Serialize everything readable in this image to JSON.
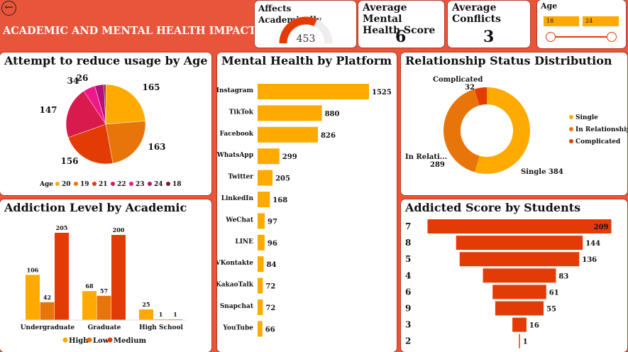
{
  "header": {
    "title": "ACADEMIC AND MENTAL HEALTH IMPACT",
    "back_icon": "arrow-left-icon"
  },
  "kpis": {
    "affects": {
      "label": "Affects Academically",
      "value": "453",
      "gauge_fraction": 0.64
    },
    "mental": {
      "label1": "Average Mental",
      "label2": "Health Score",
      "value": "6"
    },
    "conflicts": {
      "label1": "Average",
      "label2": "Conflicts",
      "value": "3"
    }
  },
  "age_slicer": {
    "label": "Age",
    "min": "18",
    "max": "24"
  },
  "colors": {
    "accent": "#e8553a",
    "bar": "#ffaa00",
    "high": "#ffaa00",
    "low": "#e8750a",
    "medium": "#e33b06"
  },
  "pie_age": {
    "title": "Attempt to reduce usage by Age",
    "legend_title": "Age",
    "slices": [
      {
        "label": "20",
        "value": 165,
        "color": "#ffaa00"
      },
      {
        "label": "19",
        "value": 163,
        "color": "#e8750a"
      },
      {
        "label": "21",
        "value": 156,
        "color": "#e33b06"
      },
      {
        "label": "22",
        "value": 147,
        "color": "#d81b4c"
      },
      {
        "label": "23",
        "value": 34,
        "color": "#f0168c"
      },
      {
        "label": "24",
        "value": 26,
        "color": "#b5117a"
      },
      {
        "label": "18",
        "value": 5,
        "color": "#7a0f3a"
      }
    ],
    "value_labels": [
      "165",
      "163",
      "156",
      "147",
      "34",
      "26"
    ]
  },
  "platform": {
    "title": "Mental Health by Platform",
    "rows": [
      {
        "name": "Instagram",
        "value": 1525,
        "label": "1525"
      },
      {
        "name": "TikTok",
        "value": 880,
        "label": "880"
      },
      {
        "name": "Facebook",
        "value": 826,
        "label": "826"
      },
      {
        "name": "WhatsApp",
        "value": 299,
        "label": "299"
      },
      {
        "name": "Twitter",
        "value": 205,
        "label": "205"
      },
      {
        "name": "LinkedIn",
        "value": 168,
        "label": "168"
      },
      {
        "name": "WeChat",
        "value": 97,
        "label": "97"
      },
      {
        "name": "LINE",
        "value": 96,
        "label": "96"
      },
      {
        "name": "VKontakte",
        "value": 84,
        "label": "84"
      },
      {
        "name": "KakaoTalk",
        "value": 72,
        "label": "72"
      },
      {
        "name": "Snapchat",
        "value": 72,
        "label": "72"
      },
      {
        "name": "YouTube",
        "value": 66,
        "label": "66"
      }
    ]
  },
  "relationship": {
    "title": "Relationship Status Distribution",
    "slices": [
      {
        "name": "Single",
        "value": 384,
        "color": "#ffaa00"
      },
      {
        "name": "In Relationship",
        "value": 289,
        "color": "#e8750a"
      },
      {
        "name": "Complicated",
        "value": 32,
        "color": "#e33b06"
      }
    ],
    "label_complicated": "Complicated",
    "label_complicated_value": "32",
    "label_inrel": "In Relati...",
    "label_inrel_value": "289",
    "label_single": "Single 384"
  },
  "academic": {
    "title": "Addiction Level by Academic",
    "groups": [
      {
        "name": "Undergraduate",
        "high": 106,
        "low": 42,
        "medium": 205,
        "labels": [
          "106",
          "42",
          "205"
        ]
      },
      {
        "name": "Graduate",
        "high": 68,
        "low": 57,
        "medium": 200,
        "labels": [
          "68",
          "57",
          "200"
        ]
      },
      {
        "name": "High School",
        "high": 25,
        "low": 1,
        "medium": 1,
        "labels": [
          "25",
          "1",
          "1"
        ]
      }
    ],
    "legend": [
      "High",
      "Low",
      "Medium"
    ]
  },
  "funnel": {
    "title": "Addicted Score by Students",
    "rows": [
      {
        "name": "7",
        "value": 209,
        "label": "209"
      },
      {
        "name": "8",
        "value": 144,
        "label": "144"
      },
      {
        "name": "5",
        "value": 136,
        "label": "136"
      },
      {
        "name": "4",
        "value": 83,
        "label": "83"
      },
      {
        "name": "6",
        "value": 61,
        "label": "61"
      },
      {
        "name": "9",
        "value": 55,
        "label": "55"
      },
      {
        "name": "3",
        "value": 16,
        "label": "16"
      },
      {
        "name": "2",
        "value": 1,
        "label": "1"
      }
    ]
  },
  "chart_data": [
    {
      "type": "pie",
      "title": "Attempt to reduce usage by Age",
      "categories": [
        "20",
        "19",
        "21",
        "22",
        "23",
        "24",
        "18"
      ],
      "values": [
        165,
        163,
        156,
        147,
        34,
        26,
        5
      ]
    },
    {
      "type": "bar",
      "title": "Mental Health by Platform",
      "categories": [
        "Instagram",
        "TikTok",
        "Facebook",
        "WhatsApp",
        "Twitter",
        "LinkedIn",
        "WeChat",
        "LINE",
        "VKontakte",
        "KakaoTalk",
        "Snapchat",
        "YouTube"
      ],
      "values": [
        1525,
        880,
        826,
        299,
        205,
        168,
        97,
        96,
        84,
        72,
        72,
        66
      ]
    },
    {
      "type": "pie",
      "title": "Relationship Status Distribution",
      "categories": [
        "Single",
        "In Relationship",
        "Complicated"
      ],
      "values": [
        384,
        289,
        32
      ]
    },
    {
      "type": "bar",
      "title": "Addiction Level by Academic",
      "categories": [
        "Undergraduate",
        "Graduate",
        "High School"
      ],
      "series": [
        {
          "name": "High",
          "values": [
            106,
            68,
            25
          ]
        },
        {
          "name": "Low",
          "values": [
            42,
            57,
            1
          ]
        },
        {
          "name": "Medium",
          "values": [
            205,
            200,
            1
          ]
        }
      ]
    },
    {
      "type": "bar",
      "title": "Addicted Score by Students",
      "categories": [
        "7",
        "8",
        "5",
        "4",
        "6",
        "9",
        "3",
        "2"
      ],
      "values": [
        209,
        144,
        136,
        83,
        61,
        55,
        16,
        1
      ]
    }
  ]
}
